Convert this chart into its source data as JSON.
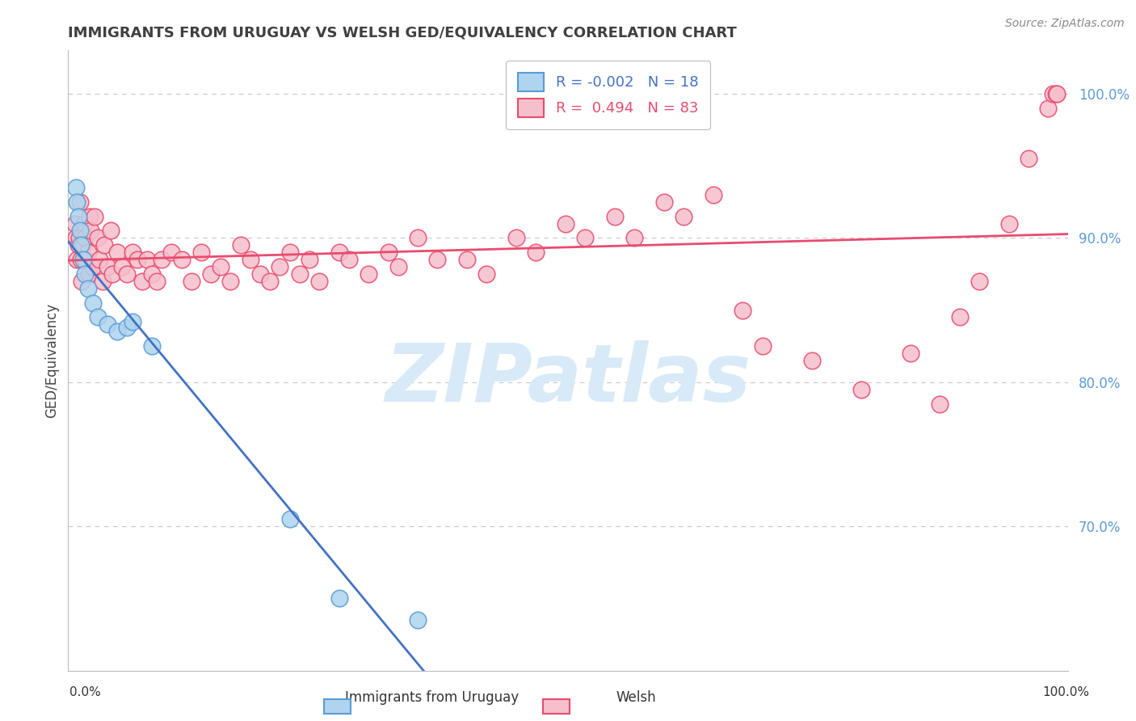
{
  "title": "IMMIGRANTS FROM URUGUAY VS WELSH GED/EQUIVALENCY CORRELATION CHART",
  "source": "Source: ZipAtlas.com",
  "ylabel": "GED/Equivalency",
  "legend_blue_label": "Immigrants from Uruguay",
  "legend_pink_label": "Welsh",
  "blue_R": -0.002,
  "blue_N": 18,
  "pink_R": 0.494,
  "pink_N": 83,
  "blue_scatter_x": [
    0.3,
    0.4,
    0.5,
    0.7,
    0.8,
    1.0,
    1.2,
    1.5,
    2.0,
    2.5,
    3.5,
    4.5,
    5.5,
    6.0,
    8.0,
    22.0,
    27.0,
    35.0
  ],
  "blue_scatter_y": [
    93.5,
    92.5,
    91.5,
    90.5,
    89.5,
    88.5,
    87.5,
    86.5,
    85.5,
    84.5,
    84.0,
    83.5,
    83.8,
    84.2,
    82.5,
    70.5,
    65.0,
    63.5
  ],
  "pink_scatter_x": [
    0.2,
    0.3,
    0.4,
    0.5,
    0.6,
    0.7,
    0.8,
    0.9,
    1.0,
    1.1,
    1.2,
    1.3,
    1.5,
    1.6,
    1.7,
    1.8,
    2.0,
    2.2,
    2.5,
    2.7,
    3.0,
    3.2,
    3.5,
    3.8,
    4.0,
    4.5,
    5.0,
    5.5,
    6.0,
    6.5,
    7.0,
    7.5,
    8.0,
    8.5,
    9.0,
    10.0,
    11.0,
    12.0,
    13.0,
    14.0,
    15.0,
    16.0,
    17.0,
    18.0,
    19.0,
    20.0,
    21.0,
    22.0,
    23.0,
    24.0,
    25.0,
    27.0,
    28.0,
    30.0,
    32.0,
    33.0,
    35.0,
    37.0,
    40.0,
    42.0,
    45.0,
    47.0,
    50.0,
    52.0,
    55.0,
    57.0,
    60.0,
    62.0,
    65.0,
    68.0,
    70.0,
    75.0,
    80.0,
    85.0,
    88.0,
    90.0,
    92.0,
    95.0,
    97.0,
    99.0,
    99.5,
    99.8,
    99.9
  ],
  "pink_scatter_y": [
    91.0,
    90.0,
    88.5,
    89.5,
    90.0,
    92.5,
    88.5,
    87.0,
    89.5,
    91.0,
    90.0,
    88.5,
    89.0,
    87.5,
    91.5,
    90.5,
    88.0,
    91.5,
    90.0,
    88.5,
    87.0,
    89.5,
    88.0,
    90.5,
    87.5,
    89.0,
    88.0,
    87.5,
    89.0,
    88.5,
    87.0,
    88.5,
    87.5,
    87.0,
    88.5,
    89.0,
    88.5,
    87.0,
    89.0,
    87.5,
    88.0,
    87.0,
    89.5,
    88.5,
    87.5,
    87.0,
    88.0,
    89.0,
    87.5,
    88.5,
    87.0,
    89.0,
    88.5,
    87.5,
    89.0,
    88.0,
    90.0,
    88.5,
    88.5,
    87.5,
    90.0,
    89.0,
    91.0,
    90.0,
    91.5,
    90.0,
    92.5,
    91.5,
    93.0,
    85.0,
    82.5,
    81.5,
    79.5,
    82.0,
    78.5,
    84.5,
    87.0,
    91.0,
    95.5,
    99.0,
    100.0,
    100.0,
    100.0
  ],
  "watermark_text": "ZIPatlas",
  "blue_color": "#aed4ee",
  "pink_color": "#f5bfcc",
  "blue_edge_color": "#5b9bd5",
  "pink_edge_color": "#e84c6e",
  "blue_line_color": "#4472c4",
  "pink_line_color": "#e84c6e",
  "ylim_bottom": 60.0,
  "ylim_top": 103.0,
  "xlim_left": -0.5,
  "xlim_right": 101.0,
  "yticks": [
    70.0,
    80.0,
    90.0,
    100.0
  ],
  "ytick_labels": [
    "70.0%",
    "80.0%",
    "90.0%",
    "100.0%"
  ],
  "ytick_color": "#5b9bd5",
  "background_color": "#ffffff",
  "grid_color": "#c8c8c8",
  "title_color": "#404040",
  "source_color": "#888888",
  "watermark_color": "#d8eaf8"
}
